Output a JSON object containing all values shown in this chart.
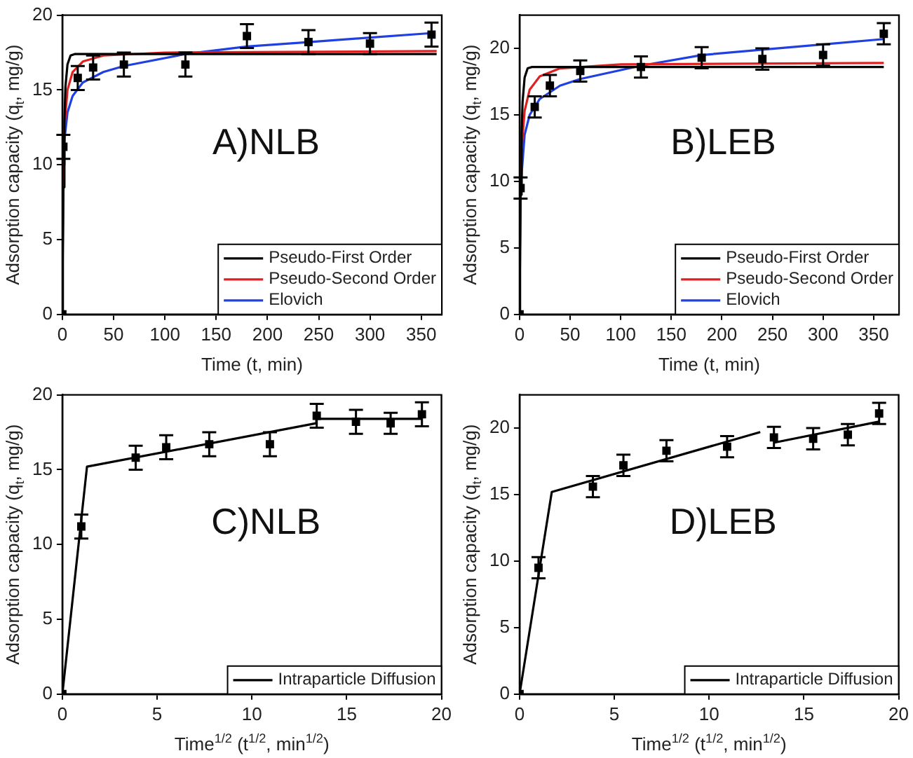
{
  "chart_data": [
    {
      "type": "line",
      "annotations": [
        "A)NLB"
      ],
      "xlabel": "Time (t, min)",
      "ylabel": "Adsorption capacity (q$_{t}$, mg/g)",
      "xlim": [
        0,
        370
      ],
      "xticks": [
        0,
        50,
        100,
        150,
        200,
        250,
        300,
        350
      ],
      "ylim": [
        0,
        20
      ],
      "yticks": [
        0,
        5,
        10,
        15,
        20
      ],
      "grid": false,
      "legend": "bottom right",
      "series": [
        {
          "type": "scatter",
          "marker": "square",
          "color": "#000000",
          "x": [
            0,
            1,
            15,
            30,
            60,
            120,
            180,
            240,
            300,
            360
          ],
          "values": [
            0,
            11.2,
            15.8,
            16.5,
            16.7,
            16.7,
            18.6,
            18.2,
            18.1,
            18.7
          ],
          "errors": [
            null,
            0.8,
            0.8,
            0.8,
            0.8,
            0.8,
            0.8,
            0.8,
            0.7,
            0.8
          ]
        },
        {
          "name": "Pseudo-First Order",
          "color": "#000000",
          "x": [
            0,
            0.5,
            1,
            2,
            3,
            5,
            8,
            12,
            365
          ],
          "values": [
            0,
            4.5,
            8.5,
            12.9,
            15.2,
            16.7,
            17.3,
            17.4,
            17.4
          ]
        },
        {
          "name": "Pseudo-Second Order",
          "color": "#e02020",
          "x": [
            0,
            1,
            2,
            5,
            10,
            20,
            40,
            100,
            365
          ],
          "values": [
            0,
            10,
            12.5,
            15,
            16.2,
            16.9,
            17.3,
            17.5,
            17.6
          ]
        },
        {
          "name": "Elovich",
          "color": "#2040e0",
          "x": [
            0,
            1,
            5,
            10,
            20,
            40,
            60,
            120,
            180,
            240,
            300,
            360
          ],
          "values": [
            0,
            11,
            13.5,
            14.6,
            15.5,
            16.2,
            16.6,
            17.4,
            17.9,
            18.2,
            18.5,
            18.8
          ]
        }
      ]
    },
    {
      "type": "line",
      "annotations": [
        "B)LEB"
      ],
      "xlabel": "Time (t, min)",
      "ylabel": "Adsorption capacity (q$_{t}$, mg/g)",
      "xlim": [
        0,
        375
      ],
      "xticks": [
        0,
        50,
        100,
        150,
        200,
        250,
        300,
        350
      ],
      "ylim": [
        0,
        22.5
      ],
      "yticks": [
        0,
        5,
        10,
        15,
        20
      ],
      "grid": false,
      "legend": "bottom right",
      "series": [
        {
          "type": "scatter",
          "marker": "square",
          "color": "#000000",
          "x": [
            0,
            1,
            15,
            30,
            60,
            120,
            180,
            240,
            300,
            360
          ],
          "values": [
            0,
            9.5,
            15.6,
            17.2,
            18.3,
            18.6,
            19.3,
            19.2,
            19.5,
            21.1
          ],
          "errors": [
            null,
            0.8,
            0.8,
            0.8,
            0.8,
            0.8,
            0.8,
            0.8,
            0.8,
            0.8
          ]
        },
        {
          "name": "Pseudo-First Order",
          "color": "#000000",
          "x": [
            0,
            0.5,
            1,
            2,
            3,
            5,
            8,
            12,
            360
          ],
          "values": [
            0,
            4.8,
            9,
            13.6,
            16,
            17.8,
            18.5,
            18.6,
            18.6
          ]
        },
        {
          "name": "Pseudo-Second Order",
          "color": "#e02020",
          "x": [
            0,
            1,
            2,
            5,
            10,
            20,
            40,
            100,
            360
          ],
          "values": [
            0,
            9.8,
            12.4,
            15.3,
            16.9,
            17.9,
            18.5,
            18.8,
            18.9
          ]
        },
        {
          "name": "Elovich",
          "color": "#2040e0",
          "x": [
            0,
            1,
            5,
            10,
            20,
            40,
            60,
            120,
            180,
            240,
            300,
            360
          ],
          "values": [
            0,
            9.5,
            13.5,
            15,
            16.2,
            17.2,
            17.7,
            18.7,
            19.5,
            19.9,
            20.3,
            20.7
          ]
        }
      ]
    },
    {
      "type": "line",
      "annotations": [
        "C)NLB"
      ],
      "xlabel": "Time$^{1/2}$ (t$^{1/2}$, min$^{1/2}$)",
      "ylabel": "Adsorption capacity (q$_{t}$, mg/g)",
      "xlim": [
        0,
        20
      ],
      "xticks": [
        0,
        5,
        10,
        15,
        20
      ],
      "ylim": [
        0,
        20
      ],
      "yticks": [
        0,
        5,
        10,
        15,
        20
      ],
      "grid": false,
      "legend": "bottom right",
      "series": [
        {
          "type": "scatter",
          "marker": "square",
          "color": "#000000",
          "x": [
            0,
            1,
            3.87,
            5.48,
            7.75,
            10.95,
            13.42,
            15.49,
            17.32,
            18.97
          ],
          "values": [
            0,
            11.2,
            15.8,
            16.5,
            16.7,
            16.7,
            18.6,
            18.2,
            18.1,
            18.7
          ],
          "errors": [
            null,
            0.8,
            0.8,
            0.8,
            0.8,
            0.8,
            0.8,
            0.8,
            0.7,
            0.8
          ]
        },
        {
          "name": "Intraparticle Diffusion",
          "color": "#000000",
          "x": [
            0,
            1.3,
            13.4,
            13.4,
            19
          ],
          "values": [
            0,
            15.2,
            18.1,
            18.4,
            18.4
          ]
        }
      ]
    },
    {
      "type": "line",
      "annotations": [
        "D)LEB"
      ],
      "xlabel": "Time$^{1/2}$ (t$^{1/2}$, min$^{1/2}$)",
      "ylabel": "Adsorption capacity (q$_{t}$, mg/g)",
      "xlim": [
        0,
        20
      ],
      "xticks": [
        0,
        5,
        10,
        15,
        20
      ],
      "ylim": [
        0,
        22.5
      ],
      "yticks": [
        0,
        5,
        10,
        15,
        20
      ],
      "grid": false,
      "legend": "bottom right",
      "series": [
        {
          "type": "scatter",
          "marker": "square",
          "color": "#000000",
          "x": [
            0,
            1,
            3.87,
            5.48,
            7.75,
            10.95,
            13.42,
            15.49,
            17.32,
            18.97
          ],
          "values": [
            0,
            9.5,
            15.6,
            17.2,
            18.3,
            18.6,
            19.3,
            19.2,
            19.5,
            21.1
          ],
          "errors": [
            null,
            0.8,
            0.8,
            0.8,
            0.8,
            0.8,
            0.8,
            0.8,
            0.8,
            0.8
          ]
        },
        {
          "name": "Intraparticle Diffusion",
          "color": "#000000",
          "x": [
            0,
            1.7,
            12.7,
            13,
            13.4,
            19
          ],
          "values": [
            0,
            15.2,
            19.7,
            null,
            18.9,
            20.5
          ]
        }
      ]
    }
  ]
}
